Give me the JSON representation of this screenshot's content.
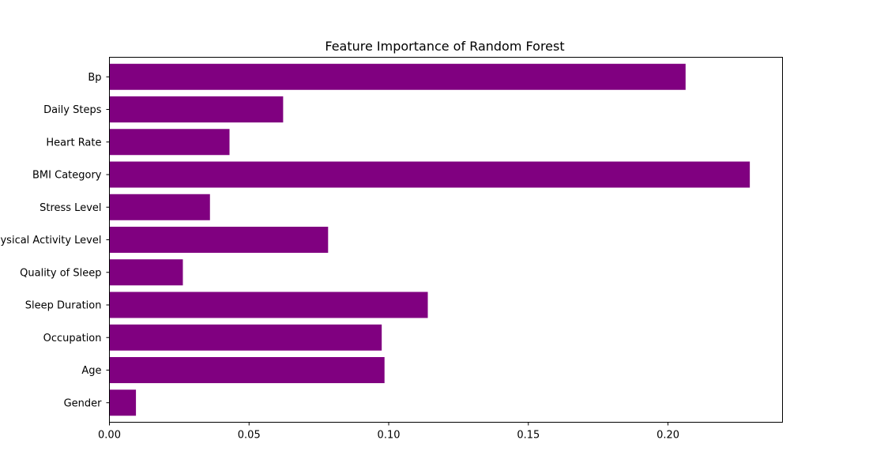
{
  "chart_data": {
    "type": "bar",
    "orientation": "horizontal",
    "title": "Feature Importance of Random Forest",
    "xlabel": "",
    "ylabel": "",
    "categories": [
      "Gender",
      "Age",
      "Occupation",
      "Sleep Duration",
      "Quality of Sleep",
      "Physical Activity Level",
      "Stress Level",
      "BMI Category",
      "Heart Rate",
      "Daily Steps",
      "Bp"
    ],
    "values": [
      0.0095,
      0.0985,
      0.0975,
      0.114,
      0.0263,
      0.0783,
      0.036,
      0.2293,
      0.043,
      0.0622,
      0.2063
    ],
    "xlim": [
      0,
      0.241
    ],
    "xticks": [
      "0.00",
      "0.05",
      "0.10",
      "0.15",
      "0.20"
    ],
    "bar_color": "#800080",
    "grid": false
  }
}
